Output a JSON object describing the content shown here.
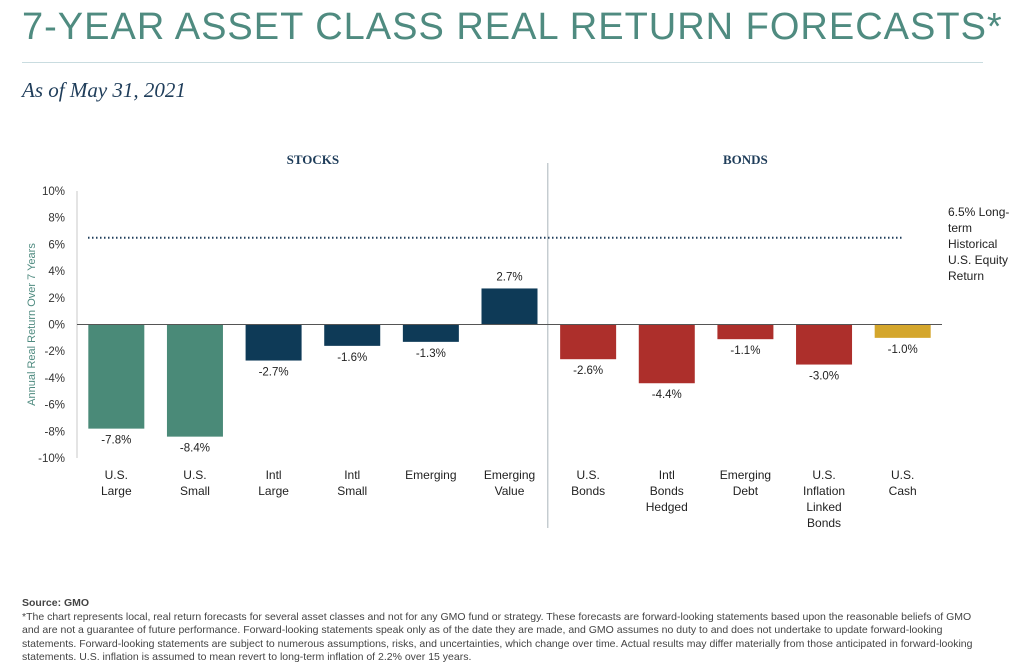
{
  "header": {
    "title": "7-YEAR ASSET CLASS REAL RETURN FORECASTS*",
    "subtitle": "As of May 31, 2021"
  },
  "chart_data": {
    "type": "bar",
    "title": "7-YEAR ASSET CLASS REAL RETURN FORECASTS*",
    "ylabel": "Annual Real Return Over 7 Years",
    "ylim": [
      -10,
      10
    ],
    "yticks": [
      10,
      8,
      6,
      4,
      2,
      0,
      -2,
      -4,
      -6,
      -8,
      -10
    ],
    "ytick_labels": [
      "10%",
      "8%",
      "6%",
      "4%",
      "2%",
      "0%",
      "-2%",
      "-4%",
      "-6%",
      "-8%",
      "-10%"
    ],
    "groups": [
      {
        "name": "STOCKS",
        "start": 0,
        "end": 5
      },
      {
        "name": "BONDS",
        "start": 6,
        "end": 10
      }
    ],
    "categories": [
      [
        "U.S.",
        "Large"
      ],
      [
        "U.S.",
        "Small"
      ],
      [
        "Intl",
        "Large"
      ],
      [
        "Intl",
        "Small"
      ],
      [
        "Emerging"
      ],
      [
        "Emerging",
        "Value"
      ],
      [
        "U.S.",
        "Bonds"
      ],
      [
        "Intl",
        "Bonds",
        "Hedged"
      ],
      [
        "Emerging",
        "Debt"
      ],
      [
        "U.S.",
        "Inflation",
        "Linked",
        "Bonds"
      ],
      [
        "U.S.",
        "Cash"
      ]
    ],
    "values": [
      -7.8,
      -8.4,
      -2.7,
      -1.6,
      -1.3,
      2.7,
      -2.6,
      -4.4,
      -1.1,
      -3.0,
      -1.0
    ],
    "value_labels": [
      "-7.8%",
      "-8.4%",
      "-2.7%",
      "-1.6%",
      "-1.3%",
      "2.7%",
      "-2.6%",
      "-4.4%",
      "-1.1%",
      "-3.0%",
      "-1.0%"
    ],
    "colors": [
      "#4a8a78",
      "#4a8a78",
      "#0e3a57",
      "#0e3a57",
      "#0e3a57",
      "#0e3a57",
      "#ad2f2b",
      "#ad2f2b",
      "#ad2f2b",
      "#ad2f2b",
      "#d4a62c"
    ],
    "reference_line": {
      "value": 6.5,
      "label": [
        "6.5% Long-",
        "term",
        "Historical",
        "U.S. Equity",
        "Return"
      ],
      "color": "#1f3d5a"
    },
    "colors_meta": {
      "axis": "#4f8b80",
      "divider": "#aab5bb",
      "tick_text": "#333333"
    }
  },
  "footer": {
    "source": "Source: GMO",
    "note": "*The chart represents local, real return forecasts for several asset classes and not for any GMO fund or strategy. These forecasts are forward-looking statements based upon the reasonable beliefs of GMO and are not a guarantee of future performance. Forward-looking statements speak only as of the date they are made, and GMO assumes no duty to and does not undertake to update forward-looking statements. Forward-looking statements are subject to numerous assumptions, risks, and uncertainties, which change over time. Actual results may differ materially from those anticipated in forward-looking statements. U.S. inflation is assumed to mean revert to long-term inflation of 2.2% over 15 years."
  }
}
